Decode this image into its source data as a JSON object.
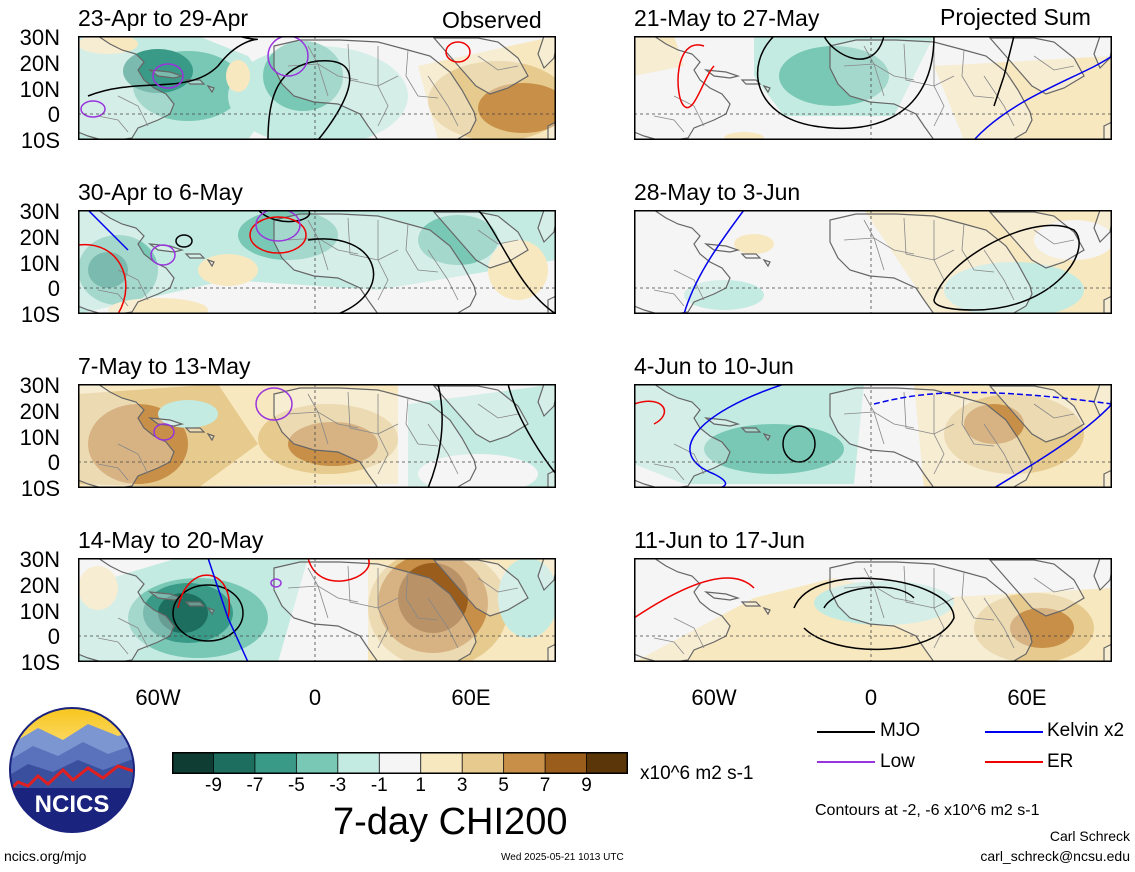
{
  "tags": {
    "observed": "Observed",
    "projected": "Projected Sum"
  },
  "panels": [
    {
      "title": "23-Apr to 29-Apr",
      "column": "observed"
    },
    {
      "title": "30-Apr to 6-May",
      "column": "observed"
    },
    {
      "title": "7-May to 13-May",
      "column": "observed"
    },
    {
      "title": "14-May to 20-May",
      "column": "observed"
    },
    {
      "title": "21-May to 27-May",
      "column": "projected"
    },
    {
      "title": "28-May to 3-Jun",
      "column": "projected"
    },
    {
      "title": "4-Jun to 10-Jun",
      "column": "projected"
    },
    {
      "title": "11-Jun to 17-Jun",
      "column": "projected"
    }
  ],
  "lat_ticks": [
    "30N",
    "20N",
    "10N",
    "0",
    "10S"
  ],
  "lon_ticks": [
    "60W",
    "0",
    "60E"
  ],
  "colorbar": {
    "colors": [
      "#103d33",
      "#1d6e5e",
      "#3a9a88",
      "#79c8b5",
      "#c4ebe1",
      "#f5f5f5",
      "#f8e8c0",
      "#e7cb8e",
      "#c78f48",
      "#9a5d1c",
      "#5a3609"
    ],
    "labels": [
      "-9",
      "-7",
      "-5",
      "-3",
      "-1",
      "1",
      "3",
      "5",
      "7",
      "9"
    ],
    "units": "x10^6 m2 s-1"
  },
  "main_title": "7-day CHI200",
  "legend": {
    "items": [
      {
        "label": "MJO",
        "color": "#000000"
      },
      {
        "label": "Kelvin x2",
        "color": "#0000ee"
      },
      {
        "label": "Low",
        "color": "#9933dd"
      },
      {
        "label": "ER",
        "color": "#ee0000"
      }
    ],
    "contours_note": "Contours at -2, -6 x10^6 m2 s-1"
  },
  "credits": {
    "author": "Carl Schreck",
    "email": "carl_schreck@ncsu.edu",
    "website": "ncics.org/mjo",
    "timestamp": "Wed 2025-05-21 1013 UTC"
  },
  "logo": {
    "text": "NCICS"
  }
}
